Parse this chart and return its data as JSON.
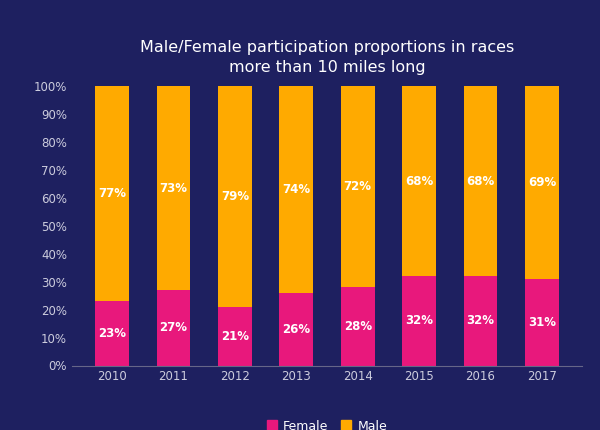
{
  "years": [
    "2010",
    "2011",
    "2012",
    "2013",
    "2014",
    "2015",
    "2016",
    "2017"
  ],
  "female": [
    23,
    27,
    21,
    26,
    28,
    32,
    32,
    31
  ],
  "male": [
    77,
    73,
    79,
    74,
    72,
    68,
    68,
    69
  ],
  "female_color": "#e8187c",
  "male_color": "#ffaa00",
  "background_color": "#1e2060",
  "title": "Male/Female participation proportions in races\nmore than 10 miles long",
  "title_color": "#ffffff",
  "tick_color": "#ccccdd",
  "label_color": "#ffffff",
  "legend_female": "Female",
  "legend_male": "Male",
  "bar_width": 0.55,
  "ylim": [
    0,
    100
  ],
  "yticks": [
    0,
    10,
    20,
    30,
    40,
    50,
    60,
    70,
    80,
    90,
    100
  ]
}
